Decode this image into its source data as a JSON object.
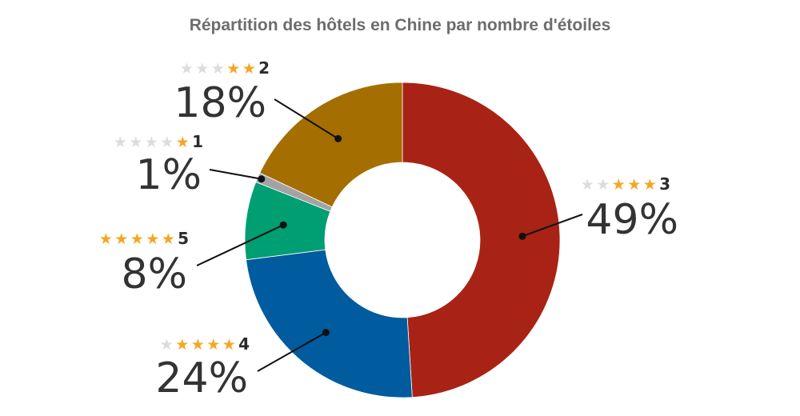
{
  "chart_data": {
    "type": "pie",
    "variant": "donut",
    "title": "Répartition des hôtels en Chine par nombre d'étoiles",
    "slices": [
      {
        "label": "3",
        "stars": 3,
        "value": 49,
        "value_label": "49%",
        "color": "#a82315"
      },
      {
        "label": "4",
        "stars": 4,
        "value": 24,
        "value_label": "24%",
        "color": "#005b9f"
      },
      {
        "label": "5",
        "stars": 5,
        "value": 8,
        "value_label": "8%",
        "color": "#009e73"
      },
      {
        "label": "1",
        "stars": 1,
        "value": 1,
        "value_label": "1%",
        "color": "#a3a3a3"
      },
      {
        "label": "2",
        "stars": 2,
        "value": 18,
        "value_label": "18%",
        "color": "#a46f00"
      }
    ],
    "star_colors": {
      "filled": "#f5a623",
      "empty": "#dcdcdc"
    },
    "legend": "none"
  }
}
